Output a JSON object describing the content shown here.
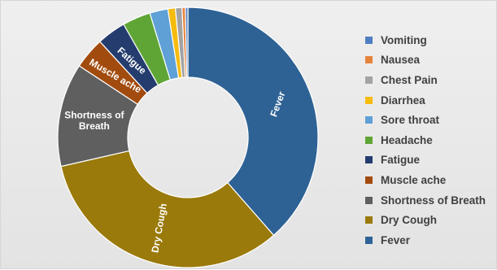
{
  "chart_data": {
    "type": "pie",
    "donut": true,
    "legend_position": "right",
    "slices": [
      {
        "name": "Fever",
        "value": 37.5,
        "color": "#2e6295"
      },
      {
        "name": "Dry Cough",
        "value": 32.0,
        "color": "#9a7a0b"
      },
      {
        "name": "Shortness of Breath",
        "value": 12.5,
        "color": "#5f5f5f",
        "label_lines": [
          "Shortness of",
          "Breath"
        ]
      },
      {
        "name": "Muscle ache",
        "value": 3.8,
        "color": "#a24b0e"
      },
      {
        "name": "Fatigue",
        "value": 3.5,
        "color": "#243c6e"
      },
      {
        "name": "Headache",
        "value": 3.4,
        "color": "#5fa535"
      },
      {
        "name": "Sore throat",
        "value": 2.2,
        "color": "#5fa0d6"
      },
      {
        "name": "Diarrhea",
        "value": 0.9,
        "color": "#f5bb0f"
      },
      {
        "name": "Chest Pain",
        "value": 0.8,
        "color": "#a3a3a3"
      },
      {
        "name": "Nausea",
        "value": 0.4,
        "color": "#e6843c"
      },
      {
        "name": "Vomiting",
        "value": 0.3,
        "color": "#4f7ec2"
      }
    ],
    "slice_labels_shown": [
      "Fever",
      "Dry Cough",
      "Shortness of Breath",
      "Muscle ache",
      "Fatigue"
    ],
    "legend_order": [
      "Vomiting",
      "Nausea",
      "Chest Pain",
      "Diarrhea",
      "Sore throat",
      "Headache",
      "Fatigue",
      "Muscle ache",
      "Shortness of Breath",
      "Dry Cough",
      "Fever"
    ]
  }
}
